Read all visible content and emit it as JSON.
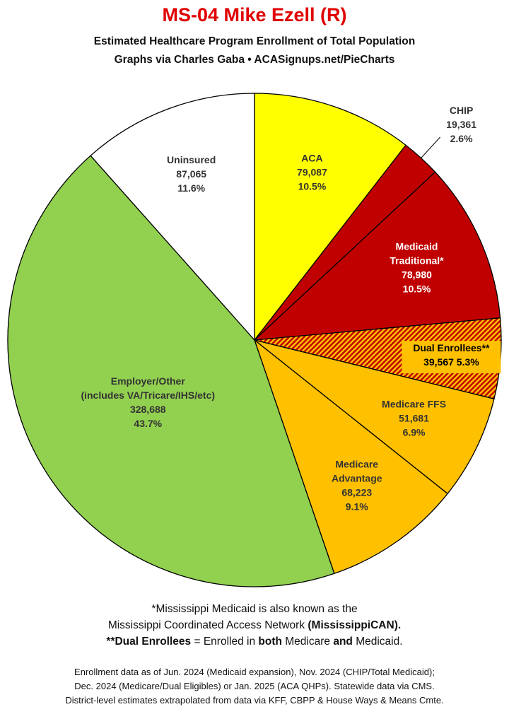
{
  "header": {
    "title": "MS-04 Mike Ezell (R)",
    "subtitle1": "Estimated Healthcare Program Enrollment of Total Population",
    "subtitle2": "Graphs via Charles Gaba  •  ACASignups.net/PieCharts"
  },
  "chart_data": {
    "type": "pie",
    "title": "MS-04 Mike Ezell (R)",
    "slices": [
      {
        "lines": [
          "ACA",
          "79,087",
          "10.5%"
        ],
        "value": 79087,
        "percent": 10.5,
        "color": "#ffff00",
        "text_color": "#333333"
      },
      {
        "lines": [
          "CHIP",
          "19,361",
          "2.6%"
        ],
        "value": 19361,
        "percent": 2.6,
        "color": "#c00000",
        "text_color": "#333333",
        "outside": true
      },
      {
        "lines": [
          "Medicaid",
          "Traditional*",
          "78,980",
          "10.5%"
        ],
        "value": 78980,
        "percent": 10.5,
        "color": "#c00000",
        "text_color": "#ffffff"
      },
      {
        "lines": [
          "Dual Enrollees**",
          "39,567 5.3%"
        ],
        "value": 39567,
        "percent": 5.3,
        "color": "#ffc000",
        "hatch": "#c00000",
        "text_color": "#000000",
        "boxed": true
      },
      {
        "lines": [
          "Medicare FFS",
          "51,681",
          "6.9%"
        ],
        "value": 51681,
        "percent": 6.9,
        "color": "#ffc000",
        "text_color": "#333333"
      },
      {
        "lines": [
          "Medicare",
          "Advantage",
          "68,223",
          "9.1%"
        ],
        "value": 68223,
        "percent": 9.1,
        "color": "#ffc000",
        "text_color": "#333333"
      },
      {
        "lines": [
          "Employer/Other",
          "(includes VA/Tricare/IHS/etc)",
          "328,688",
          "43.7%"
        ],
        "value": 328688,
        "percent": 43.7,
        "color": "#92d050",
        "text_color": "#333333"
      },
      {
        "lines": [
          "Uninsured",
          "87,065",
          "11.6%"
        ],
        "value": 87065,
        "percent": 11.6,
        "color": "#ffffff",
        "text_color": "#333333"
      }
    ]
  },
  "notes": {
    "line1": "*Mississippi Medicaid is also known as the",
    "line2_plain": "Mississippi Coordinated Access Network ",
    "line2_bold": "(MississippiCAN).",
    "line3_a": "**Dual Enrollees",
    "line3_b": " = Enrolled in ",
    "line3_c": "both",
    "line3_d": " Medicare ",
    "line3_e": "and",
    "line3_f": " Medicaid."
  },
  "footer": {
    "line1": "Enrollment data as of Jun. 2024 (Medicaid expansion), Nov. 2024 (CHIP/Total Medicaid);",
    "line2": "Dec. 2024 (Medicare/Dual Eligibles) or Jan. 2025 (ACA QHPs). Statewide data via CMS.",
    "line3": "District-level estimates extrapolated from data via KFF, CBPP & House Ways & Means Cmte."
  }
}
